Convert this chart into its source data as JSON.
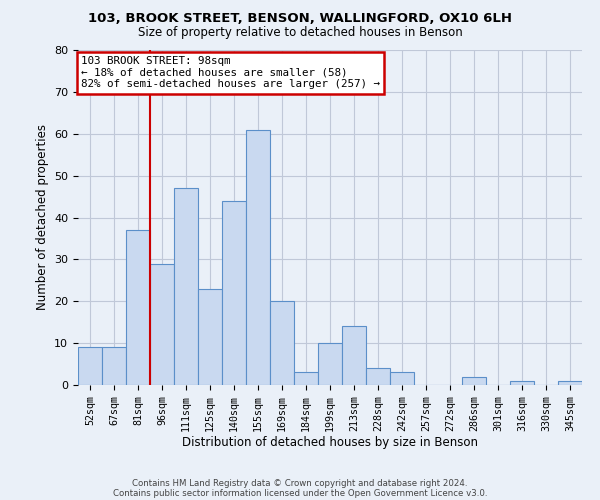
{
  "title1": "103, BROOK STREET, BENSON, WALLINGFORD, OX10 6LH",
  "title2": "Size of property relative to detached houses in Benson",
  "xlabel": "Distribution of detached houses by size in Benson",
  "ylabel": "Number of detached properties",
  "categories": [
    "52sqm",
    "67sqm",
    "81sqm",
    "96sqm",
    "111sqm",
    "125sqm",
    "140sqm",
    "155sqm",
    "169sqm",
    "184sqm",
    "199sqm",
    "213sqm",
    "228sqm",
    "242sqm",
    "257sqm",
    "272sqm",
    "286sqm",
    "301sqm",
    "316sqm",
    "330sqm",
    "345sqm"
  ],
  "values": [
    9,
    9,
    37,
    29,
    47,
    23,
    44,
    61,
    20,
    3,
    10,
    14,
    4,
    3,
    0,
    0,
    2,
    0,
    1,
    0,
    1
  ],
  "bar_color": "#c9d9f0",
  "bar_edge_color": "#5b8fc9",
  "vline_color": "#cc0000",
  "annotation_title": "103 BROOK STREET: 98sqm",
  "annotation_line1": "← 18% of detached houses are smaller (58)",
  "annotation_line2": "82% of semi-detached houses are larger (257) →",
  "annotation_box_color": "#cc0000",
  "annotation_bg_color": "#ffffff",
  "ylim": [
    0,
    80
  ],
  "yticks": [
    0,
    10,
    20,
    30,
    40,
    50,
    60,
    70,
    80
  ],
  "grid_color": "#c0c8d8",
  "background_color": "#eaf0f8",
  "footnote1": "Contains HM Land Registry data © Crown copyright and database right 2024.",
  "footnote2": "Contains public sector information licensed under the Open Government Licence v3.0."
}
